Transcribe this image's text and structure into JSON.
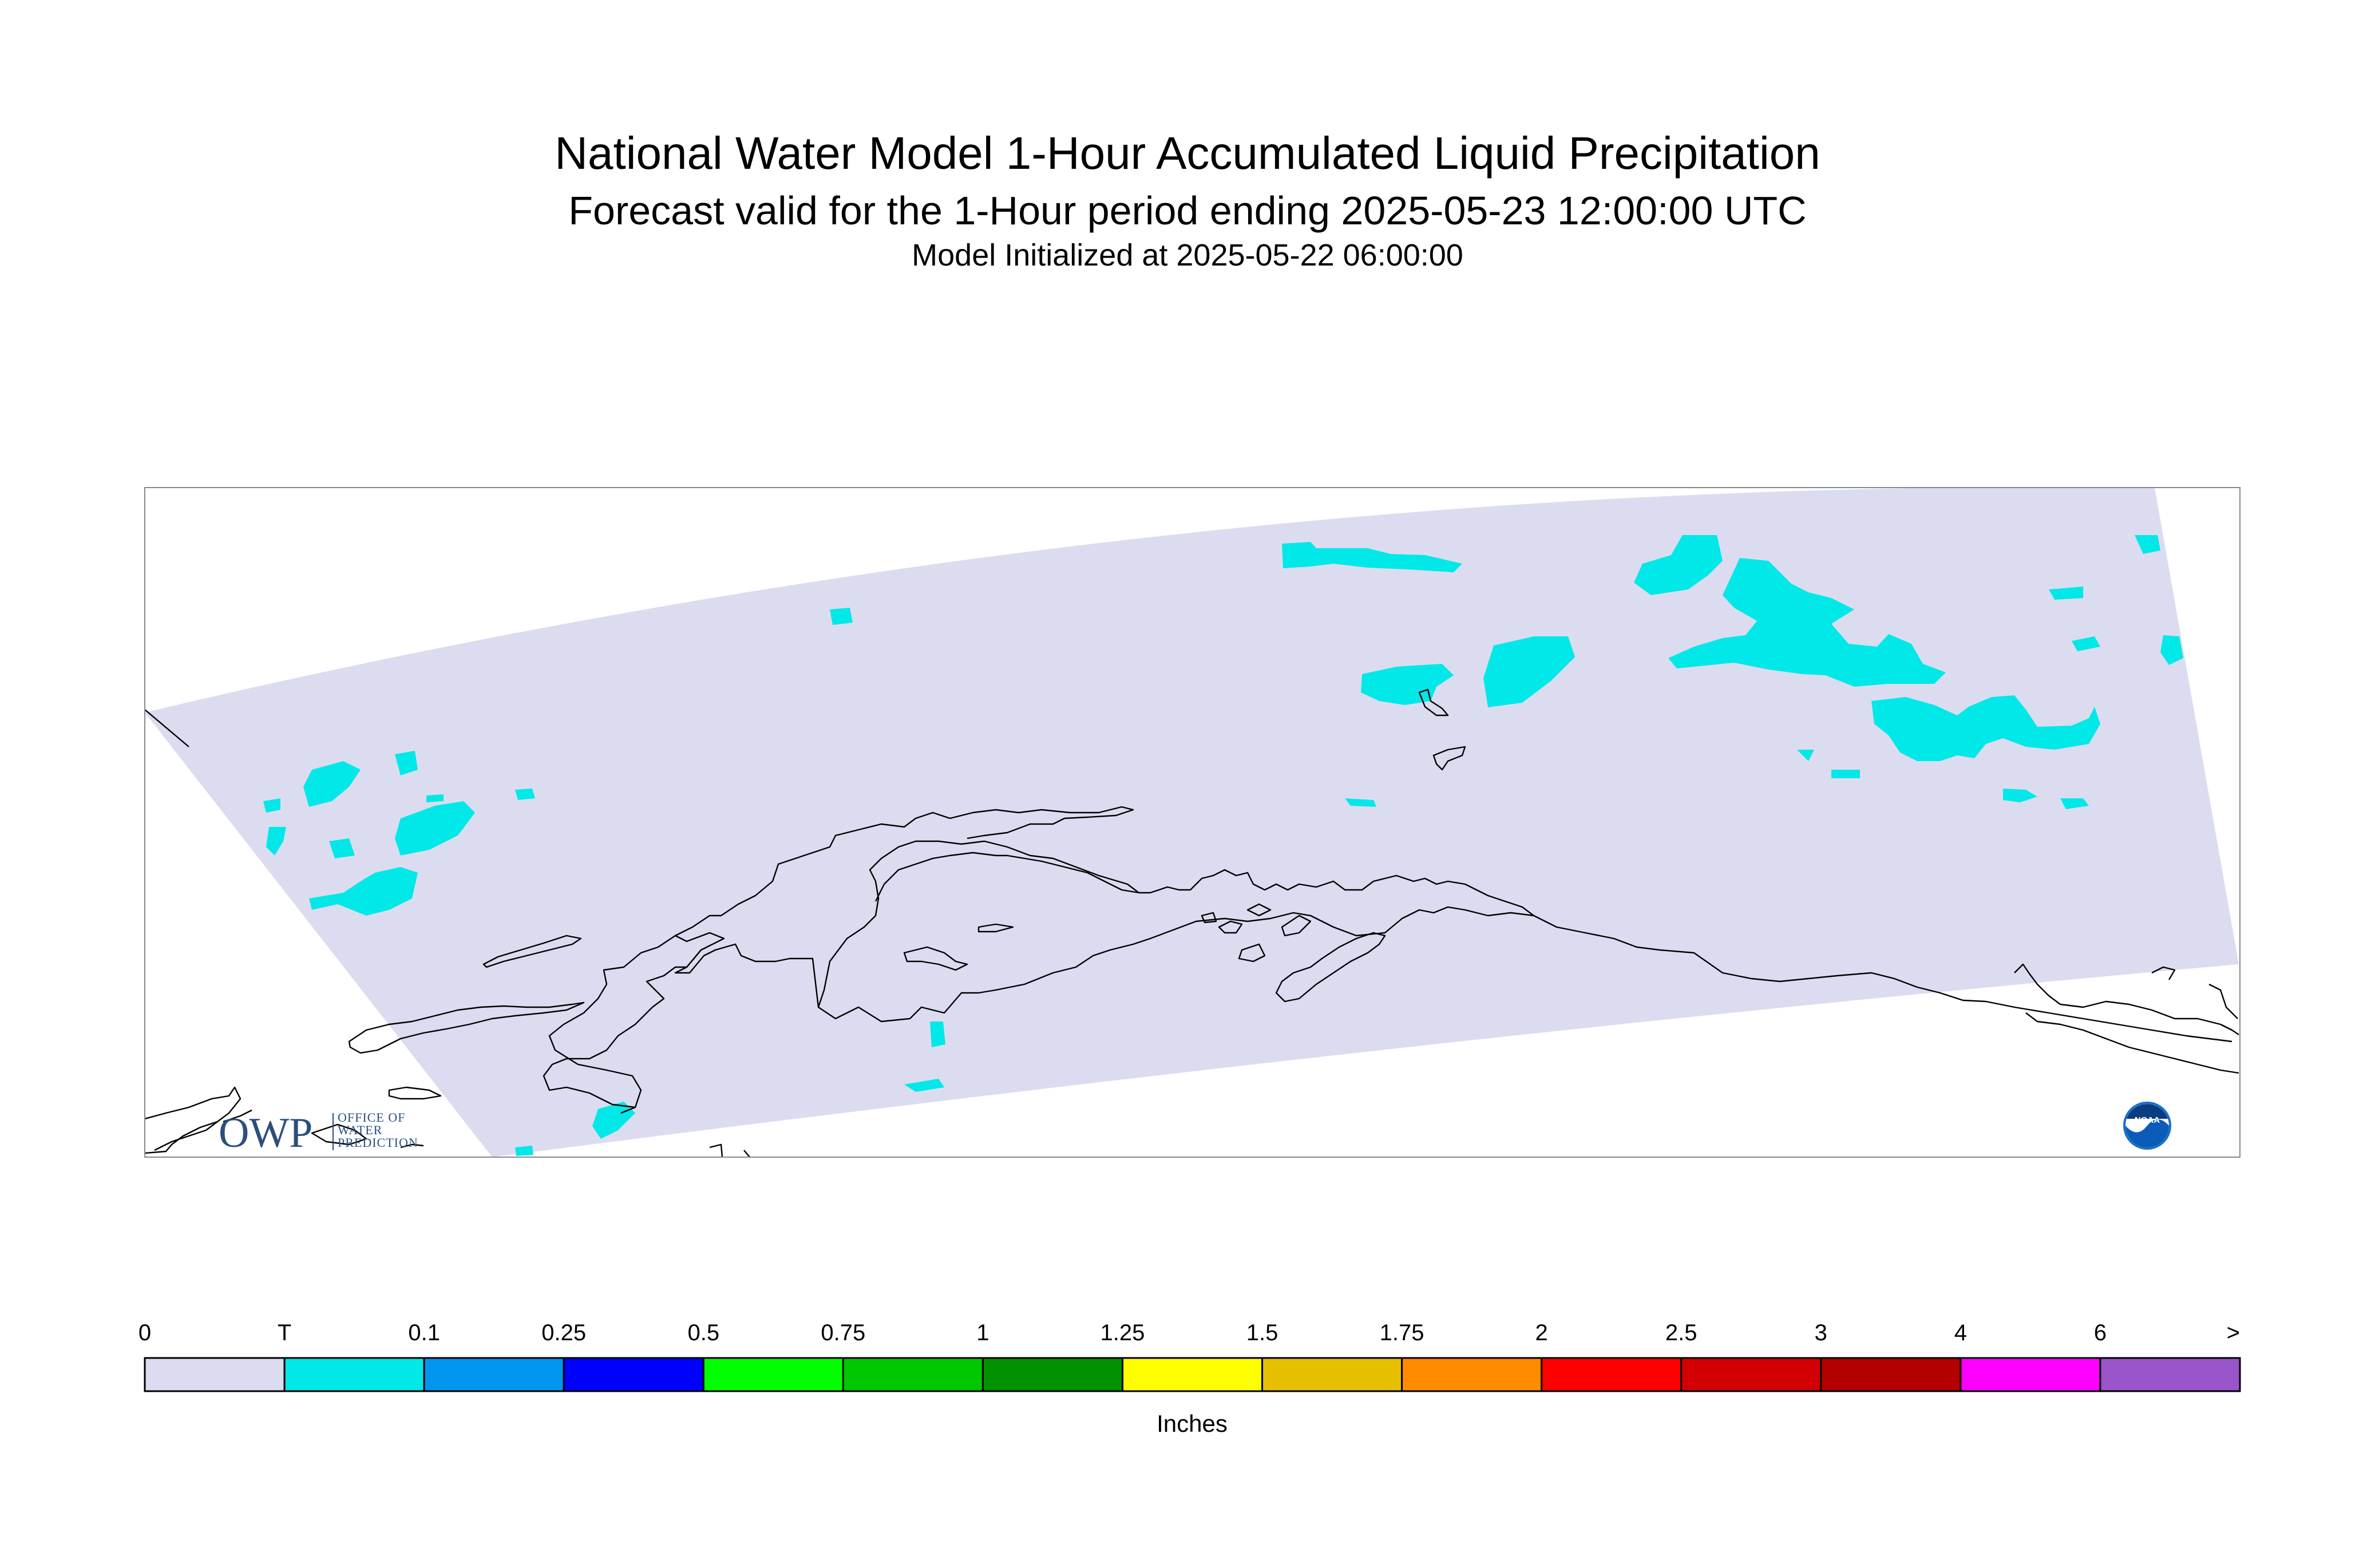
{
  "title": {
    "line1": "National Water Model 1-Hour Accumulated Liquid Precipitation",
    "line2": "Forecast valid for the 1-Hour period ending 2025-05-23 12:00:00 UTC",
    "line3": "Model Initialized at 2025-05-22 06:00:00"
  },
  "map": {
    "region": "Alaska",
    "domain_fill_color": "#dcdcf0",
    "precip_trace_color": "#00e8e8",
    "coastline_color": "#000000",
    "frame_color": "#888888"
  },
  "logos": {
    "owp": {
      "letters": "OWP",
      "line1": "OFFICE OF",
      "line2": "WATER",
      "line3": "PREDICTION"
    },
    "noaa": {
      "text": "NOAA",
      "icon": "noaa-logo-icon"
    }
  },
  "legend": {
    "unit_label": "Inches",
    "tick_labels": [
      "0",
      "T",
      "0.1",
      "0.25",
      "0.5",
      "0.75",
      "1",
      "1.25",
      "1.5",
      "1.75",
      "2",
      "2.5",
      "3",
      "4",
      "6",
      ">"
    ],
    "colors": [
      "#dcdcf0",
      "#00e8e8",
      "#0096f0",
      "#0000ff",
      "#00ff00",
      "#00c800",
      "#009100",
      "#ffff00",
      "#e6c000",
      "#ff8c00",
      "#ff0000",
      "#d20000",
      "#b40000",
      "#ff00ff",
      "#9955c9"
    ]
  }
}
